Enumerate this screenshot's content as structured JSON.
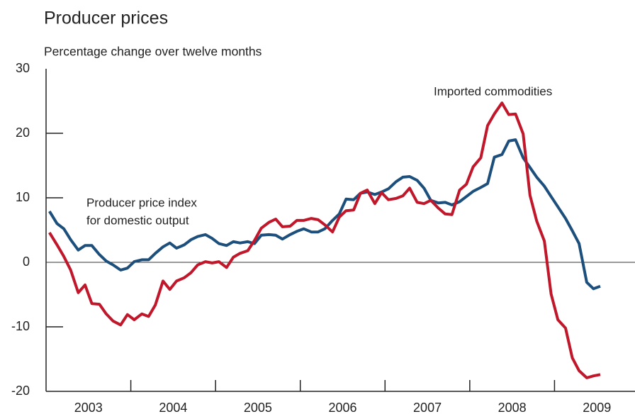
{
  "chart_data": {
    "type": "line",
    "title": "Producer prices",
    "subtitle": "Percentage change over twelve months",
    "annotations": [
      {
        "lines": [
          "Imported commodities"
        ],
        "series": "Imported commodities"
      },
      {
        "lines": [
          "Producer price index",
          "for domestic output"
        ],
        "series": "Producer price index for domestic output"
      }
    ],
    "x": [
      2003.04,
      2003.13,
      2003.21,
      2003.29,
      2003.38,
      2003.46,
      2003.54,
      2003.63,
      2003.71,
      2003.79,
      2003.88,
      2003.96,
      2004.04,
      2004.13,
      2004.21,
      2004.29,
      2004.38,
      2004.46,
      2004.54,
      2004.63,
      2004.71,
      2004.79,
      2004.88,
      2004.96,
      2005.04,
      2005.13,
      2005.21,
      2005.29,
      2005.38,
      2005.46,
      2005.54,
      2005.63,
      2005.71,
      2005.79,
      2005.88,
      2005.96,
      2006.04,
      2006.13,
      2006.21,
      2006.29,
      2006.38,
      2006.46,
      2006.54,
      2006.63,
      2006.71,
      2006.79,
      2006.88,
      2006.96,
      2007.04,
      2007.13,
      2007.21,
      2007.29,
      2007.38,
      2007.46,
      2007.54,
      2007.63,
      2007.71,
      2007.79,
      2007.88,
      2007.96,
      2008.04,
      2008.13,
      2008.21,
      2008.29,
      2008.38,
      2008.46,
      2008.54,
      2008.63,
      2008.71,
      2008.79,
      2008.88,
      2008.96,
      2009.04,
      2009.13,
      2009.21,
      2009.29,
      2009.38,
      2009.46,
      2009.54
    ],
    "series": [
      {
        "name": "Producer price index for domestic output",
        "color": "#1d4f7c",
        "values": [
          7.9,
          6.0,
          5.2,
          3.5,
          1.9,
          2.6,
          2.6,
          1.2,
          0.2,
          -0.4,
          -1.2,
          -0.9,
          0.1,
          0.4,
          0.4,
          1.4,
          2.4,
          3.0,
          2.2,
          2.7,
          3.5,
          4.0,
          4.3,
          3.7,
          2.9,
          2.6,
          3.2,
          3.0,
          3.2,
          2.9,
          4.2,
          4.3,
          4.2,
          3.6,
          4.3,
          4.8,
          5.2,
          4.7,
          4.7,
          5.2,
          6.5,
          7.5,
          9.8,
          9.7,
          10.7,
          10.9,
          10.5,
          10.9,
          11.4,
          12.5,
          13.2,
          13.3,
          12.7,
          11.5,
          9.6,
          9.2,
          9.3,
          8.9,
          9.4,
          10.2,
          11.0,
          11.6,
          12.2,
          16.3,
          16.7,
          18.8,
          19.0,
          16.2,
          14.7,
          13.2,
          11.8,
          10.2,
          8.6,
          6.8,
          4.9,
          2.9,
          -3.1,
          -4.1,
          -3.7
        ]
      },
      {
        "name": "Imported commodities",
        "color": "#c0172b",
        "values": [
          4.6,
          2.7,
          0.9,
          -1.2,
          -4.7,
          -3.5,
          -6.4,
          -6.5,
          -8.0,
          -9.1,
          -9.7,
          -8.1,
          -8.9,
          -8.0,
          -8.4,
          -6.6,
          -2.9,
          -4.2,
          -2.9,
          -2.4,
          -1.6,
          -0.4,
          0.1,
          -0.1,
          0.1,
          -0.8,
          0.8,
          1.4,
          1.8,
          3.4,
          5.3,
          6.2,
          6.7,
          5.5,
          5.6,
          6.5,
          6.5,
          6.8,
          6.6,
          5.8,
          4.7,
          7.0,
          8.0,
          8.1,
          10.7,
          11.2,
          9.1,
          10.8,
          9.7,
          9.9,
          10.3,
          11.5,
          9.3,
          9.1,
          9.6,
          8.4,
          7.5,
          7.4,
          11.2,
          12.1,
          14.8,
          16.2,
          21.2,
          23.0,
          24.7,
          22.9,
          23.0,
          19.9,
          10.4,
          6.4,
          3.3,
          -4.9,
          -8.9,
          -10.2,
          -14.8,
          -16.8,
          -17.9,
          -17.6,
          -17.4
        ]
      }
    ],
    "xlim": [
      2003,
      2010
    ],
    "xticks": [
      {
        "value": 2003.5,
        "label": "2003"
      },
      {
        "value": 2004.5,
        "label": "2004"
      },
      {
        "value": 2005.5,
        "label": "2005"
      },
      {
        "value": 2006.5,
        "label": "2006"
      },
      {
        "value": 2007.5,
        "label": "2007"
      },
      {
        "value": 2008.5,
        "label": "2008"
      },
      {
        "value": 2009.5,
        "label": "2009"
      }
    ],
    "ylim": [
      -20,
      30
    ],
    "yticks": [
      -20,
      -10,
      0,
      10,
      20,
      30
    ]
  }
}
